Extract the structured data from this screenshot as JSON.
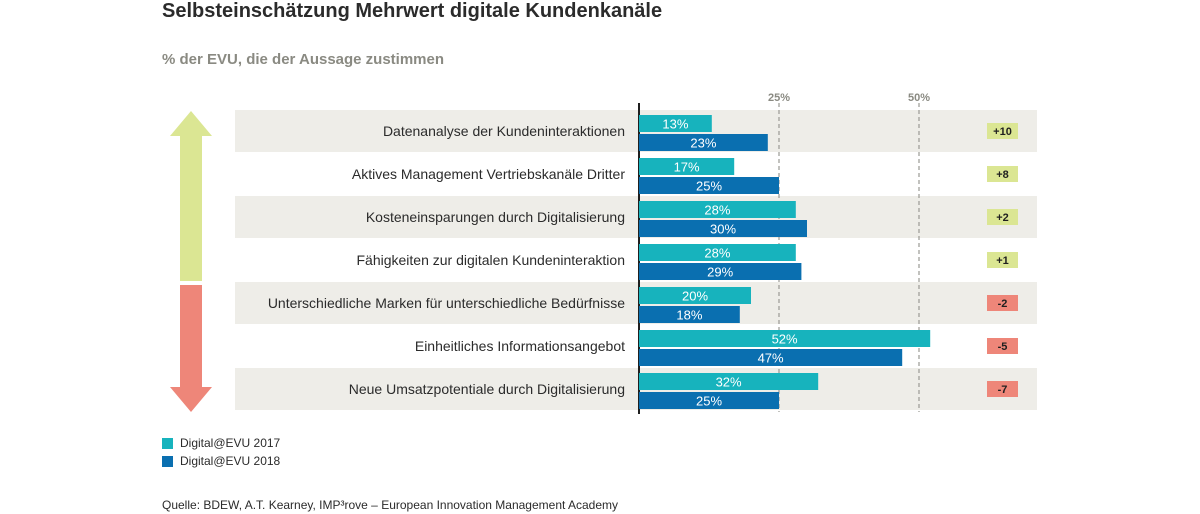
{
  "header": {
    "title": "Selbsteinschätzung Mehrwert digitale Kundenkanäle",
    "subtitle": "% der EVU, die der Aussage zustimmen"
  },
  "source": "Quelle: BDEW, A.T. Kearney, IMP³rove – European Innovation Management Academy",
  "colors": {
    "series_2017": "#17b3bd",
    "series_2018": "#0a6fb0",
    "row_band": "#eeede8",
    "diff_positive": "#dbe693",
    "diff_negative": "#ee8679",
    "arrow_up": "#dbe693",
    "arrow_down": "#ee8679"
  },
  "chart_data": {
    "type": "bar",
    "orientation": "horizontal",
    "categories": [
      "Datenanalyse der Kundeninteraktionen",
      "Aktives Management Vertriebskanäle Dritter",
      "Kosteneinsparungen durch Digitalisierung",
      "Fähigkeiten zur digitalen Kundeninteraktion",
      "Unterschiedliche Marken für unterschiedliche Bedürfnisse",
      "Einheitliches Informationsangebot",
      "Neue Umsatzpotentiale durch Digitalisierung"
    ],
    "series": [
      {
        "name": "Digital@EVU 2017",
        "values": [
          13,
          17,
          28,
          28,
          20,
          52,
          32
        ],
        "labels": [
          "13%",
          "17%",
          "28%",
          "28%",
          "20%",
          "52%",
          "32%"
        ]
      },
      {
        "name": "Digital@EVU 2018",
        "values": [
          23,
          25,
          30,
          29,
          18,
          47,
          25
        ],
        "labels": [
          "23%",
          "25%",
          "30%",
          "29%",
          "18%",
          "47%",
          "25%"
        ]
      }
    ],
    "differences": [
      "+10",
      "+8",
      "+2",
      "+1",
      "-2",
      "-5",
      "-7"
    ],
    "x_ticks": [
      {
        "value": 25,
        "label": "25%"
      },
      {
        "value": 50,
        "label": "50%"
      }
    ],
    "xlim": [
      0,
      55
    ],
    "grid": "dashed vertical lines at 25% and 50%",
    "legend_placement": "bottom-left"
  }
}
